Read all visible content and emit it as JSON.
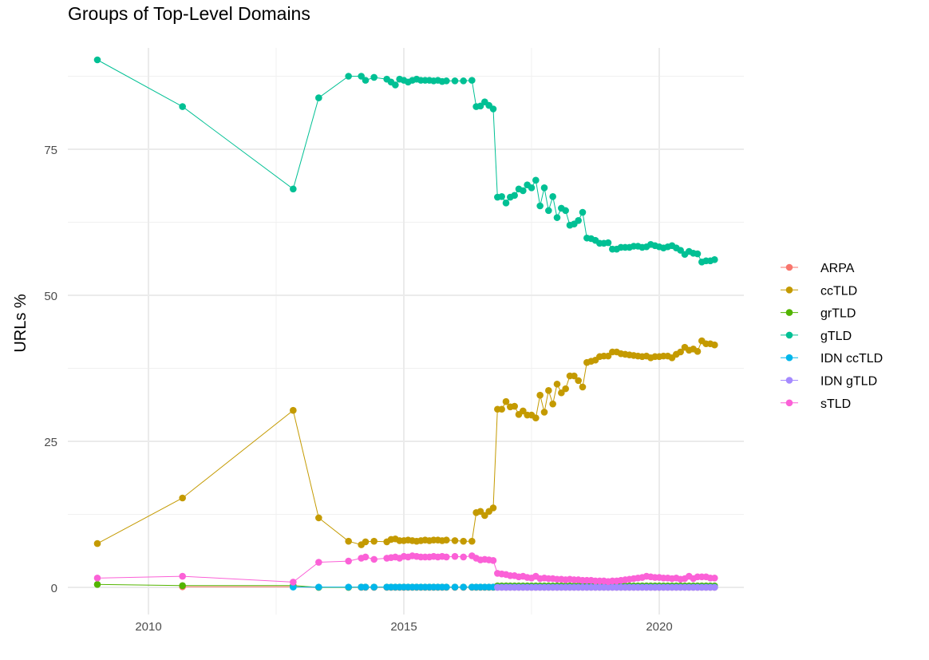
{
  "chart_data": {
    "type": "line",
    "title": "Groups of Top-Level Domains",
    "xlabel": "",
    "ylabel": "URLs %",
    "x_ticks": [
      "2010",
      "2015",
      "2020"
    ],
    "y_ticks": [
      "0",
      "25",
      "50",
      "75"
    ],
    "xlim": [
      "2008-09",
      "2021-07"
    ],
    "ylim": [
      -3,
      91
    ],
    "grid": true,
    "legend_position": "right",
    "x": [
      "2009-01",
      "2010-09",
      "2012-11",
      "2013-05",
      "2013-12",
      "2014-03",
      "2014-04",
      "2014-06",
      "2014-09",
      "2014-10",
      "2014-11",
      "2014-12",
      "2015-01",
      "2015-02",
      "2015-03",
      "2015-04",
      "2015-05",
      "2015-06",
      "2015-07",
      "2015-08",
      "2015-09",
      "2015-10",
      "2015-11",
      "2016-01",
      "2016-03",
      "2016-05",
      "2016-06",
      "2016-07",
      "2016-08",
      "2016-09",
      "2016-10",
      "2016-11",
      "2016-12",
      "2017-01",
      "2017-02",
      "2017-03",
      "2017-04",
      "2017-05",
      "2017-06",
      "2017-07",
      "2017-08",
      "2017-09",
      "2017-10",
      "2017-11",
      "2017-12",
      "2018-01",
      "2018-02",
      "2018-03",
      "2018-04",
      "2018-05",
      "2018-06",
      "2018-07",
      "2018-08",
      "2018-09",
      "2018-10",
      "2018-11",
      "2018-12",
      "2019-01",
      "2019-02",
      "2019-03",
      "2019-04",
      "2019-05",
      "2019-06",
      "2019-07",
      "2019-08",
      "2019-09",
      "2019-10",
      "2019-11",
      "2019-12",
      "2020-01",
      "2020-02",
      "2020-03",
      "2020-04",
      "2020-05",
      "2020-06",
      "2020-07",
      "2020-08",
      "2020-09",
      "2020-10",
      "2020-11",
      "2020-12",
      "2021-01",
      "2021-02"
    ],
    "series": [
      {
        "name": "ARPA",
        "color": "#F8766D",
        "values": [
          null,
          0.1,
          0.1,
          0,
          0,
          0,
          0,
          0,
          0,
          0,
          0,
          0,
          0,
          0,
          0,
          0,
          0,
          0,
          0,
          0,
          0,
          0,
          0,
          0,
          0,
          0,
          0,
          0,
          0,
          0,
          0,
          0,
          0,
          0,
          0,
          0,
          0,
          0,
          0,
          0,
          0,
          0,
          0,
          0,
          0,
          0,
          0,
          0,
          0,
          0,
          0,
          0,
          0,
          0,
          0,
          0,
          0,
          0,
          0,
          0,
          0,
          0,
          0,
          0,
          0,
          0,
          0,
          0,
          0,
          0,
          0,
          0,
          0,
          0,
          0,
          0,
          0,
          0,
          0,
          0,
          0,
          0,
          0
        ]
      },
      {
        "name": "ccTLD",
        "color": "#C49A00",
        "values": [
          7.5,
          15.3,
          30.3,
          11.9,
          7.9,
          7.3,
          7.8,
          7.9,
          7.8,
          8.2,
          8.3,
          8.0,
          8.0,
          8.1,
          8.0,
          7.9,
          8.0,
          8.1,
          8.0,
          8.1,
          8.1,
          8.0,
          8.1,
          8.0,
          7.9,
          7.9,
          12.8,
          13.0,
          12.3,
          13.0,
          13.6,
          30.5,
          30.5,
          31.8,
          30.9,
          31.0,
          29.6,
          30.2,
          29.5,
          29.5,
          29.0,
          32.9,
          30.0,
          33.7,
          31.4,
          34.8,
          33.3,
          34.0,
          36.2,
          36.2,
          35.4,
          34.3,
          38.5,
          38.7,
          38.9,
          39.5,
          39.6,
          39.6,
          40.3,
          40.3,
          40.0,
          39.9,
          39.8,
          39.7,
          39.6,
          39.5,
          39.6,
          39.3,
          39.5,
          39.5,
          39.6,
          39.6,
          39.3,
          39.9,
          40.3,
          41.1,
          40.6,
          40.8,
          40.4,
          42.2,
          41.7,
          41.7,
          41.5
        ]
      },
      {
        "name": "grTLD",
        "color": "#53B400",
        "values": [
          0.5,
          0.3,
          0.3,
          0,
          0,
          0.05,
          0.05,
          0.05,
          0.05,
          0.05,
          0.05,
          0.05,
          0.05,
          0.05,
          0.05,
          0.05,
          0.05,
          0.05,
          0.05,
          0.05,
          0.05,
          0.05,
          0.05,
          0.05,
          0.05,
          0.05,
          0.05,
          0.05,
          0.05,
          0.05,
          0.05,
          0.25,
          0.25,
          0.25,
          0.25,
          0.25,
          0.25,
          0.25,
          0.25,
          0.25,
          0.25,
          0.25,
          0.25,
          0.25,
          0.25,
          0.25,
          0.25,
          0.25,
          0.25,
          0.25,
          0.25,
          0.25,
          0.25,
          0.25,
          0.25,
          0.25,
          0.25,
          0.25,
          0.25,
          0.25,
          0.25,
          0.25,
          0.25,
          0.25,
          0.25,
          0.25,
          0.25,
          0.25,
          0.25,
          0.25,
          0.25,
          0.25,
          0.25,
          0.25,
          0.25,
          0.25,
          0.25,
          0.25,
          0.25,
          0.25,
          0.25,
          0.25,
          0.25
        ]
      },
      {
        "name": "gTLD",
        "color": "#00C094",
        "values": [
          90.3,
          82.3,
          68.2,
          83.8,
          87.5,
          87.5,
          86.8,
          87.3,
          87.0,
          86.5,
          86.0,
          87.0,
          86.8,
          86.5,
          86.8,
          87.0,
          86.8,
          86.8,
          86.8,
          86.7,
          86.8,
          86.6,
          86.7,
          86.7,
          86.7,
          86.8,
          82.3,
          82.4,
          83.1,
          82.5,
          81.9,
          66.8,
          66.9,
          65.8,
          66.8,
          67.1,
          68.2,
          67.9,
          68.9,
          68.4,
          69.7,
          65.3,
          68.4,
          64.5,
          66.9,
          63.3,
          64.9,
          64.5,
          62.0,
          62.2,
          62.8,
          64.2,
          59.8,
          59.7,
          59.4,
          58.9,
          58.9,
          59.0,
          57.9,
          57.9,
          58.2,
          58.2,
          58.2,
          58.4,
          58.4,
          58.2,
          58.3,
          58.7,
          58.5,
          58.3,
          58.1,
          58.3,
          58.5,
          58.1,
          57.7,
          57.0,
          57.5,
          57.2,
          57.1,
          55.7,
          55.9,
          55.9,
          56.1
        ]
      },
      {
        "name": "IDN ccTLD",
        "color": "#00B6EB",
        "values": [
          null,
          null,
          0.05,
          0.05,
          0.05,
          0.05,
          0.05,
          0.05,
          0.05,
          0.05,
          0.05,
          0.05,
          0.05,
          0.05,
          0.05,
          0.05,
          0.05,
          0.05,
          0.05,
          0.05,
          0.05,
          0.05,
          0.05,
          0.05,
          0.05,
          0.05,
          0.05,
          0.05,
          0.05,
          0.05,
          0.05,
          0.05,
          0.05,
          0.05,
          0.05,
          0.05,
          0.05,
          0.05,
          0.05,
          0.05,
          0.05,
          0.05,
          0.05,
          0.05,
          0.05,
          0.05,
          0.05,
          0.05,
          0.05,
          0.05,
          0.05,
          0.05,
          0.05,
          0.05,
          0.05,
          0.05,
          0.05,
          0.05,
          0.05,
          0.05,
          0.05,
          0.05,
          0.05,
          0.05,
          0.05,
          0.05,
          0.05,
          0.05,
          0.05,
          0.05,
          0.05,
          0.05,
          0.05,
          0.05,
          0.05,
          0.05,
          0.05,
          0.05,
          0.05,
          0.05,
          0.05,
          0.05,
          0.05
        ]
      },
      {
        "name": "IDN gTLD",
        "color": "#A58AFF",
        "values": [
          null,
          null,
          null,
          null,
          null,
          null,
          null,
          null,
          null,
          null,
          null,
          null,
          null,
          null,
          null,
          null,
          null,
          null,
          null,
          null,
          null,
          null,
          null,
          null,
          null,
          null,
          null,
          null,
          null,
          null,
          null,
          0,
          0,
          0,
          0,
          0,
          0,
          0,
          0,
          0,
          0,
          0,
          0,
          0,
          0,
          0,
          0,
          0,
          0,
          0,
          0,
          0,
          0,
          0,
          0,
          0,
          0,
          0,
          0,
          0,
          0,
          0,
          0,
          0,
          0,
          0,
          0,
          0,
          0,
          0,
          0,
          0,
          0,
          0,
          0,
          0,
          0,
          0,
          0,
          0,
          0,
          0,
          0
        ]
      },
      {
        "name": "sTLD",
        "color": "#FB61D7",
        "values": [
          1.6,
          1.9,
          0.9,
          4.3,
          4.5,
          5.0,
          5.2,
          4.8,
          5.0,
          5.1,
          5.2,
          5.0,
          5.3,
          5.2,
          5.4,
          5.3,
          5.2,
          5.2,
          5.2,
          5.3,
          5.2,
          5.3,
          5.2,
          5.3,
          5.2,
          5.4,
          5.0,
          4.7,
          4.8,
          4.7,
          4.6,
          2.4,
          2.3,
          2.2,
          2.0,
          2.0,
          1.8,
          1.9,
          1.7,
          1.6,
          1.9,
          1.5,
          1.6,
          1.5,
          1.5,
          1.4,
          1.4,
          1.3,
          1.4,
          1.3,
          1.3,
          1.2,
          1.2,
          1.2,
          1.1,
          1.1,
          1.1,
          1.0,
          1.1,
          1.1,
          1.2,
          1.3,
          1.4,
          1.5,
          1.6,
          1.7,
          1.9,
          1.8,
          1.7,
          1.7,
          1.6,
          1.6,
          1.5,
          1.6,
          1.4,
          1.5,
          1.9,
          1.5,
          1.8,
          1.8,
          1.8,
          1.6,
          1.6
        ]
      }
    ]
  }
}
